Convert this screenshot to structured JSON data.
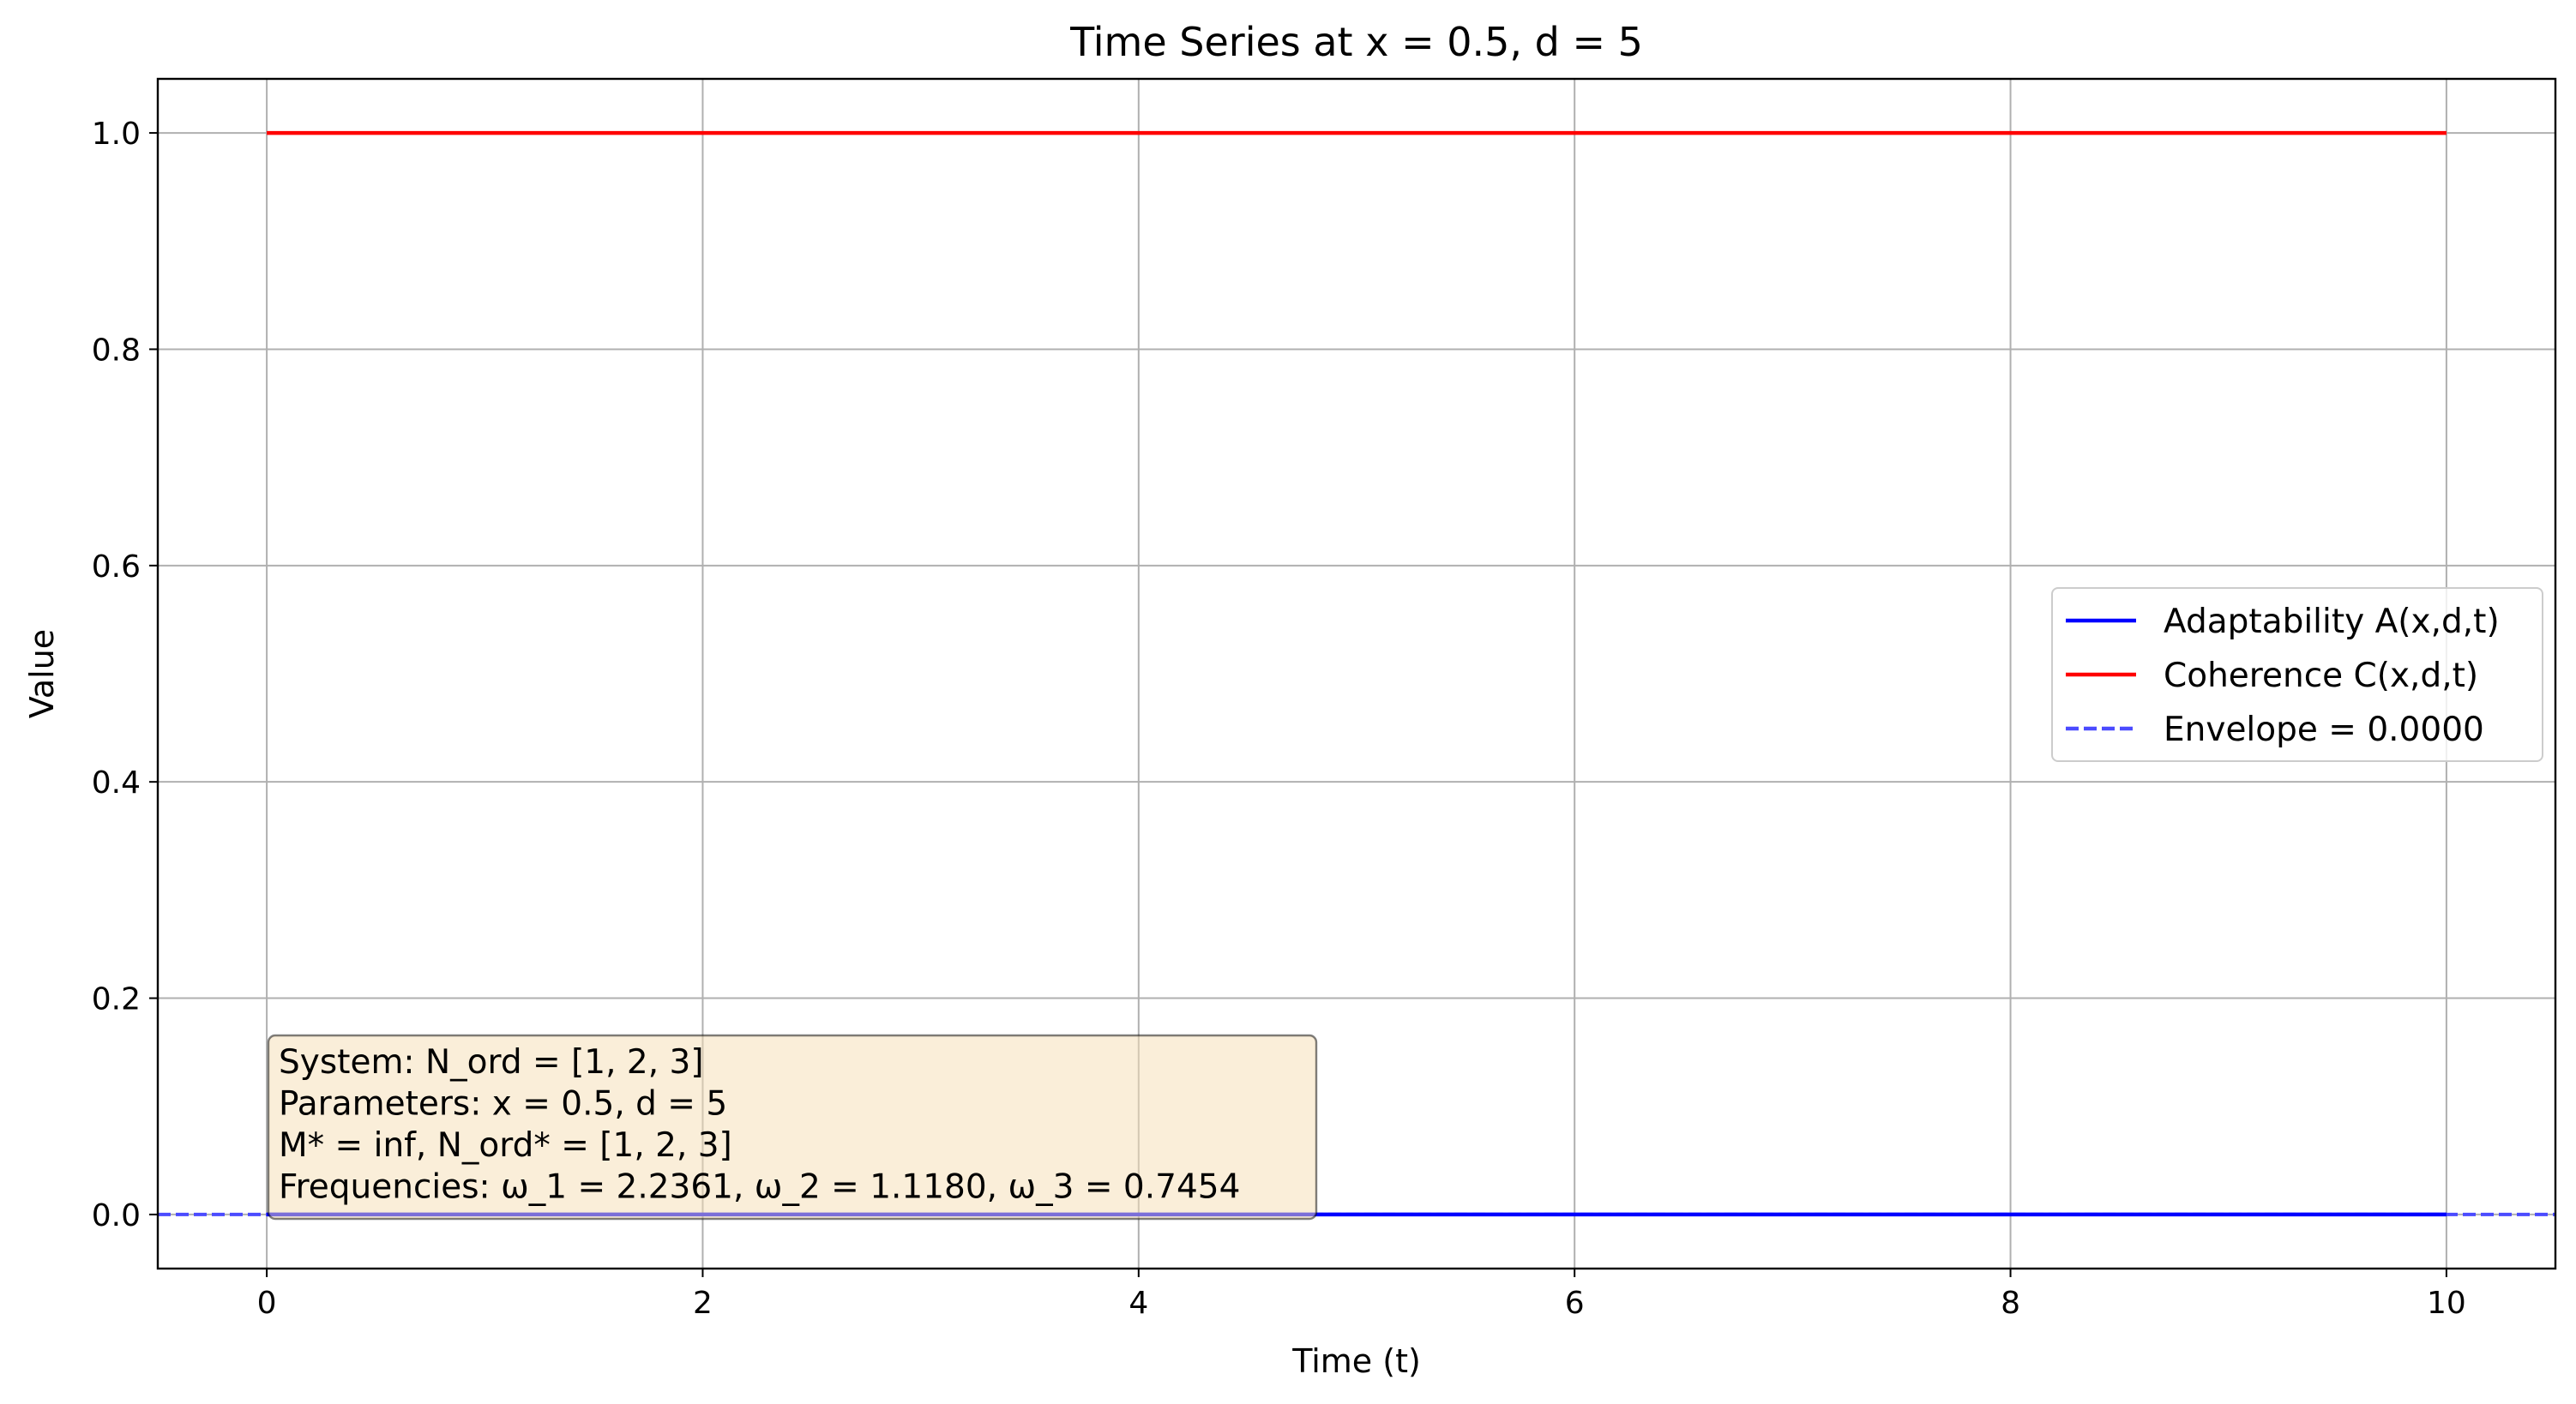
{
  "chart_data": {
    "type": "line",
    "title": "Time Series at x = 0.5, d = 5",
    "xlabel": "Time (t)",
    "ylabel": "Value",
    "xlim": [
      -0.5,
      10.5
    ],
    "ylim": [
      -0.05,
      1.05
    ],
    "xticks": [
      0,
      2,
      4,
      6,
      8,
      10
    ],
    "xtick_labels": [
      "0",
      "2",
      "4",
      "6",
      "8",
      "10"
    ],
    "yticks": [
      0.0,
      0.2,
      0.4,
      0.6,
      0.8,
      1.0
    ],
    "ytick_labels": [
      "0.0",
      "0.2",
      "0.4",
      "0.6",
      "0.8",
      "1.0"
    ],
    "grid": true,
    "legend_position": "center-right",
    "series": [
      {
        "name": "Adaptability A(x,d,t)",
        "color": "#0000ff",
        "style": "solid",
        "x": [
          0,
          10
        ],
        "y": [
          0.0,
          0.0
        ]
      },
      {
        "name": "Coherence C(x,d,t)",
        "color": "#ff0000",
        "style": "solid",
        "x": [
          0,
          10
        ],
        "y": [
          1.0,
          1.0
        ]
      }
    ],
    "hlines": [
      {
        "name": "Envelope = 0.0000",
        "color": "#4b4bff",
        "style": "dashed",
        "y": 0.0
      }
    ],
    "annotation": {
      "lines": [
        "System: N_ord = [1, 2, 3]",
        "Parameters: x = 0.5, d = 5",
        "M* = inf, N_ord* = [1, 2, 3]",
        "Frequencies: ω_1 = 2.2361, ω_2 = 1.1180, ω_3 = 0.7454"
      ],
      "background": "#f5deb3"
    }
  }
}
